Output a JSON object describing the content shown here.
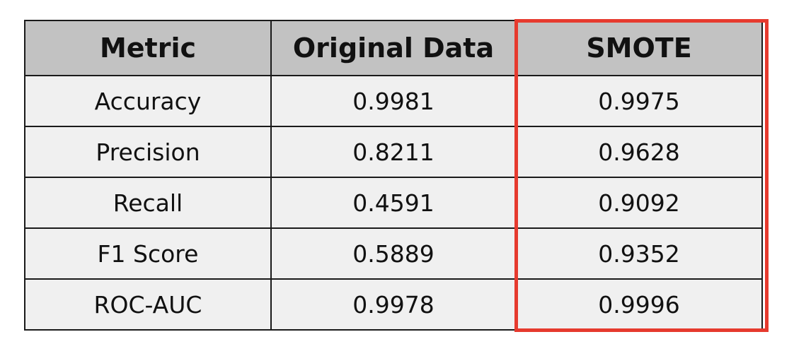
{
  "table": {
    "headers": [
      "Metric",
      "Original Data",
      "SMOTE"
    ],
    "rows": [
      [
        "Accuracy",
        "0.9981",
        "0.9975"
      ],
      [
        "Precision",
        "0.8211",
        "0.9628"
      ],
      [
        "Recall",
        "0.4591",
        "0.9092"
      ],
      [
        "F1 Score",
        "0.5889",
        "0.9352"
      ],
      [
        "ROC-AUC",
        "0.9978",
        "0.9996"
      ]
    ]
  },
  "colors": {
    "header_bg": "#c2c2c2",
    "cell_bg": "#f0f0f0",
    "border": "#1a1a1a",
    "highlight": "#e63a2e"
  }
}
